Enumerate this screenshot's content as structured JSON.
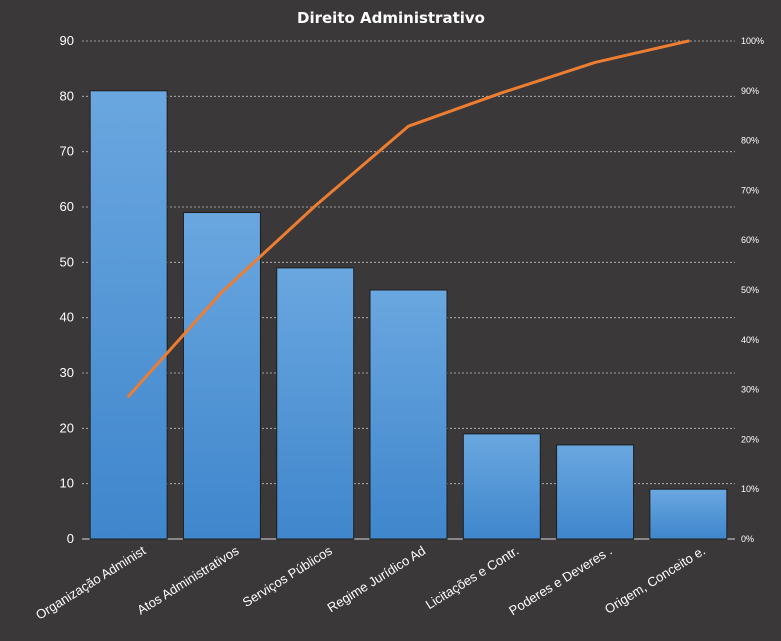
{
  "chart_data": {
    "type": "bar",
    "title": "Direito  Administrativo",
    "categories": [
      "Organização Administ",
      "Atos Administrativos",
      "Serviços Públicos",
      "Regime Jurídico Ad",
      "Licitações e Contr.",
      "Poderes e Deveres  .",
      "Origem, Conceito e."
    ],
    "series": [
      {
        "type": "bar",
        "values": [
          81,
          59,
          49,
          45,
          19,
          17,
          9
        ],
        "color": "#4f90d0"
      },
      {
        "type": "line",
        "axis": "right",
        "values": [
          28.7,
          49.6,
          66.9,
          82.9,
          89.6,
          95.7,
          100
        ],
        "color": "#ed7d31"
      }
    ],
    "ylim": [
      0,
      90
    ],
    "yticks": [
      0,
      10,
      20,
      30,
      40,
      50,
      60,
      70,
      80,
      90
    ],
    "y2lim": [
      0,
      100
    ],
    "y2ticks": [
      "0%",
      "10%",
      "20%",
      "30%",
      "40%",
      "50%",
      "60%",
      "70%",
      "80%",
      "90%",
      "100%"
    ],
    "grid": true,
    "legend": "none"
  },
  "colors": {
    "background": "#3a3838",
    "bar": "#4f90d0",
    "bar_top": "#6aa7e0",
    "line": "#ed7d31",
    "grid": "#bfbfbf"
  }
}
